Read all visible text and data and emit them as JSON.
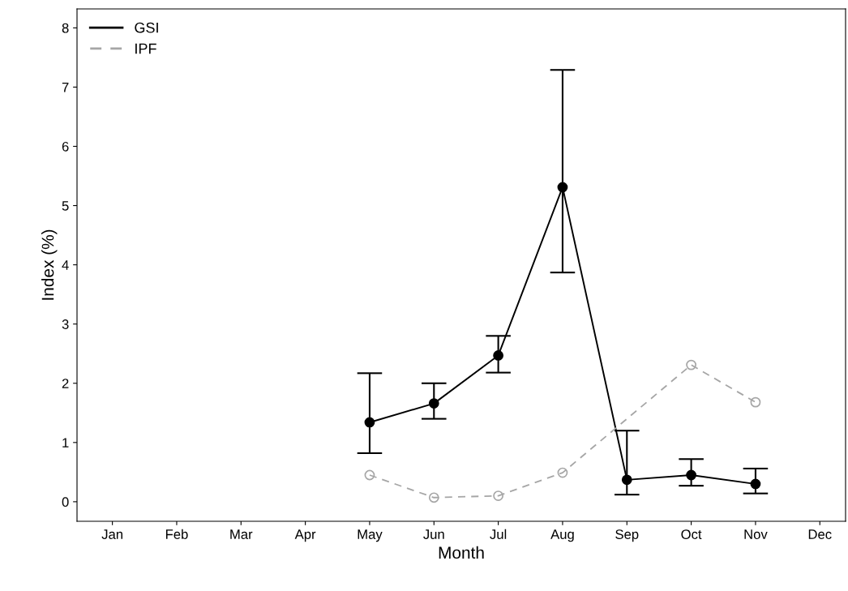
{
  "chart_data": {
    "type": "line",
    "xlabel": "Month",
    "ylabel": "Index (%)",
    "categories": [
      "Jan",
      "Feb",
      "Mar",
      "Apr",
      "May",
      "Jun",
      "Jul",
      "Aug",
      "Sep",
      "Oct",
      "Nov",
      "Dec"
    ],
    "series": [
      {
        "name": "GSI",
        "color": "#000000",
        "line_style": "solid",
        "values": [
          null,
          null,
          null,
          null,
          1.34,
          1.66,
          2.47,
          5.31,
          0.37,
          0.45,
          0.3,
          null
        ],
        "errors": [
          null,
          null,
          null,
          null,
          [
            0.82,
            2.17
          ],
          [
            1.4,
            2.0
          ],
          [
            2.18,
            2.8
          ],
          [
            3.87,
            7.29
          ],
          [
            0.12,
            1.2
          ],
          [
            0.27,
            0.72
          ],
          [
            0.14,
            0.56
          ],
          null
        ]
      },
      {
        "name": "IPF",
        "color": "#a6a6a6",
        "line_style": "dashed",
        "values": [
          null,
          null,
          null,
          null,
          0.45,
          0.07,
          0.1,
          0.49,
          null,
          2.31,
          1.68,
          null
        ]
      }
    ],
    "ylim": [
      -0.33,
      8.32
    ],
    "yticks": [
      0,
      1,
      2,
      3,
      4,
      5,
      6,
      7,
      8
    ],
    "grid": false,
    "legend": "top left",
    "marker": "circle"
  }
}
